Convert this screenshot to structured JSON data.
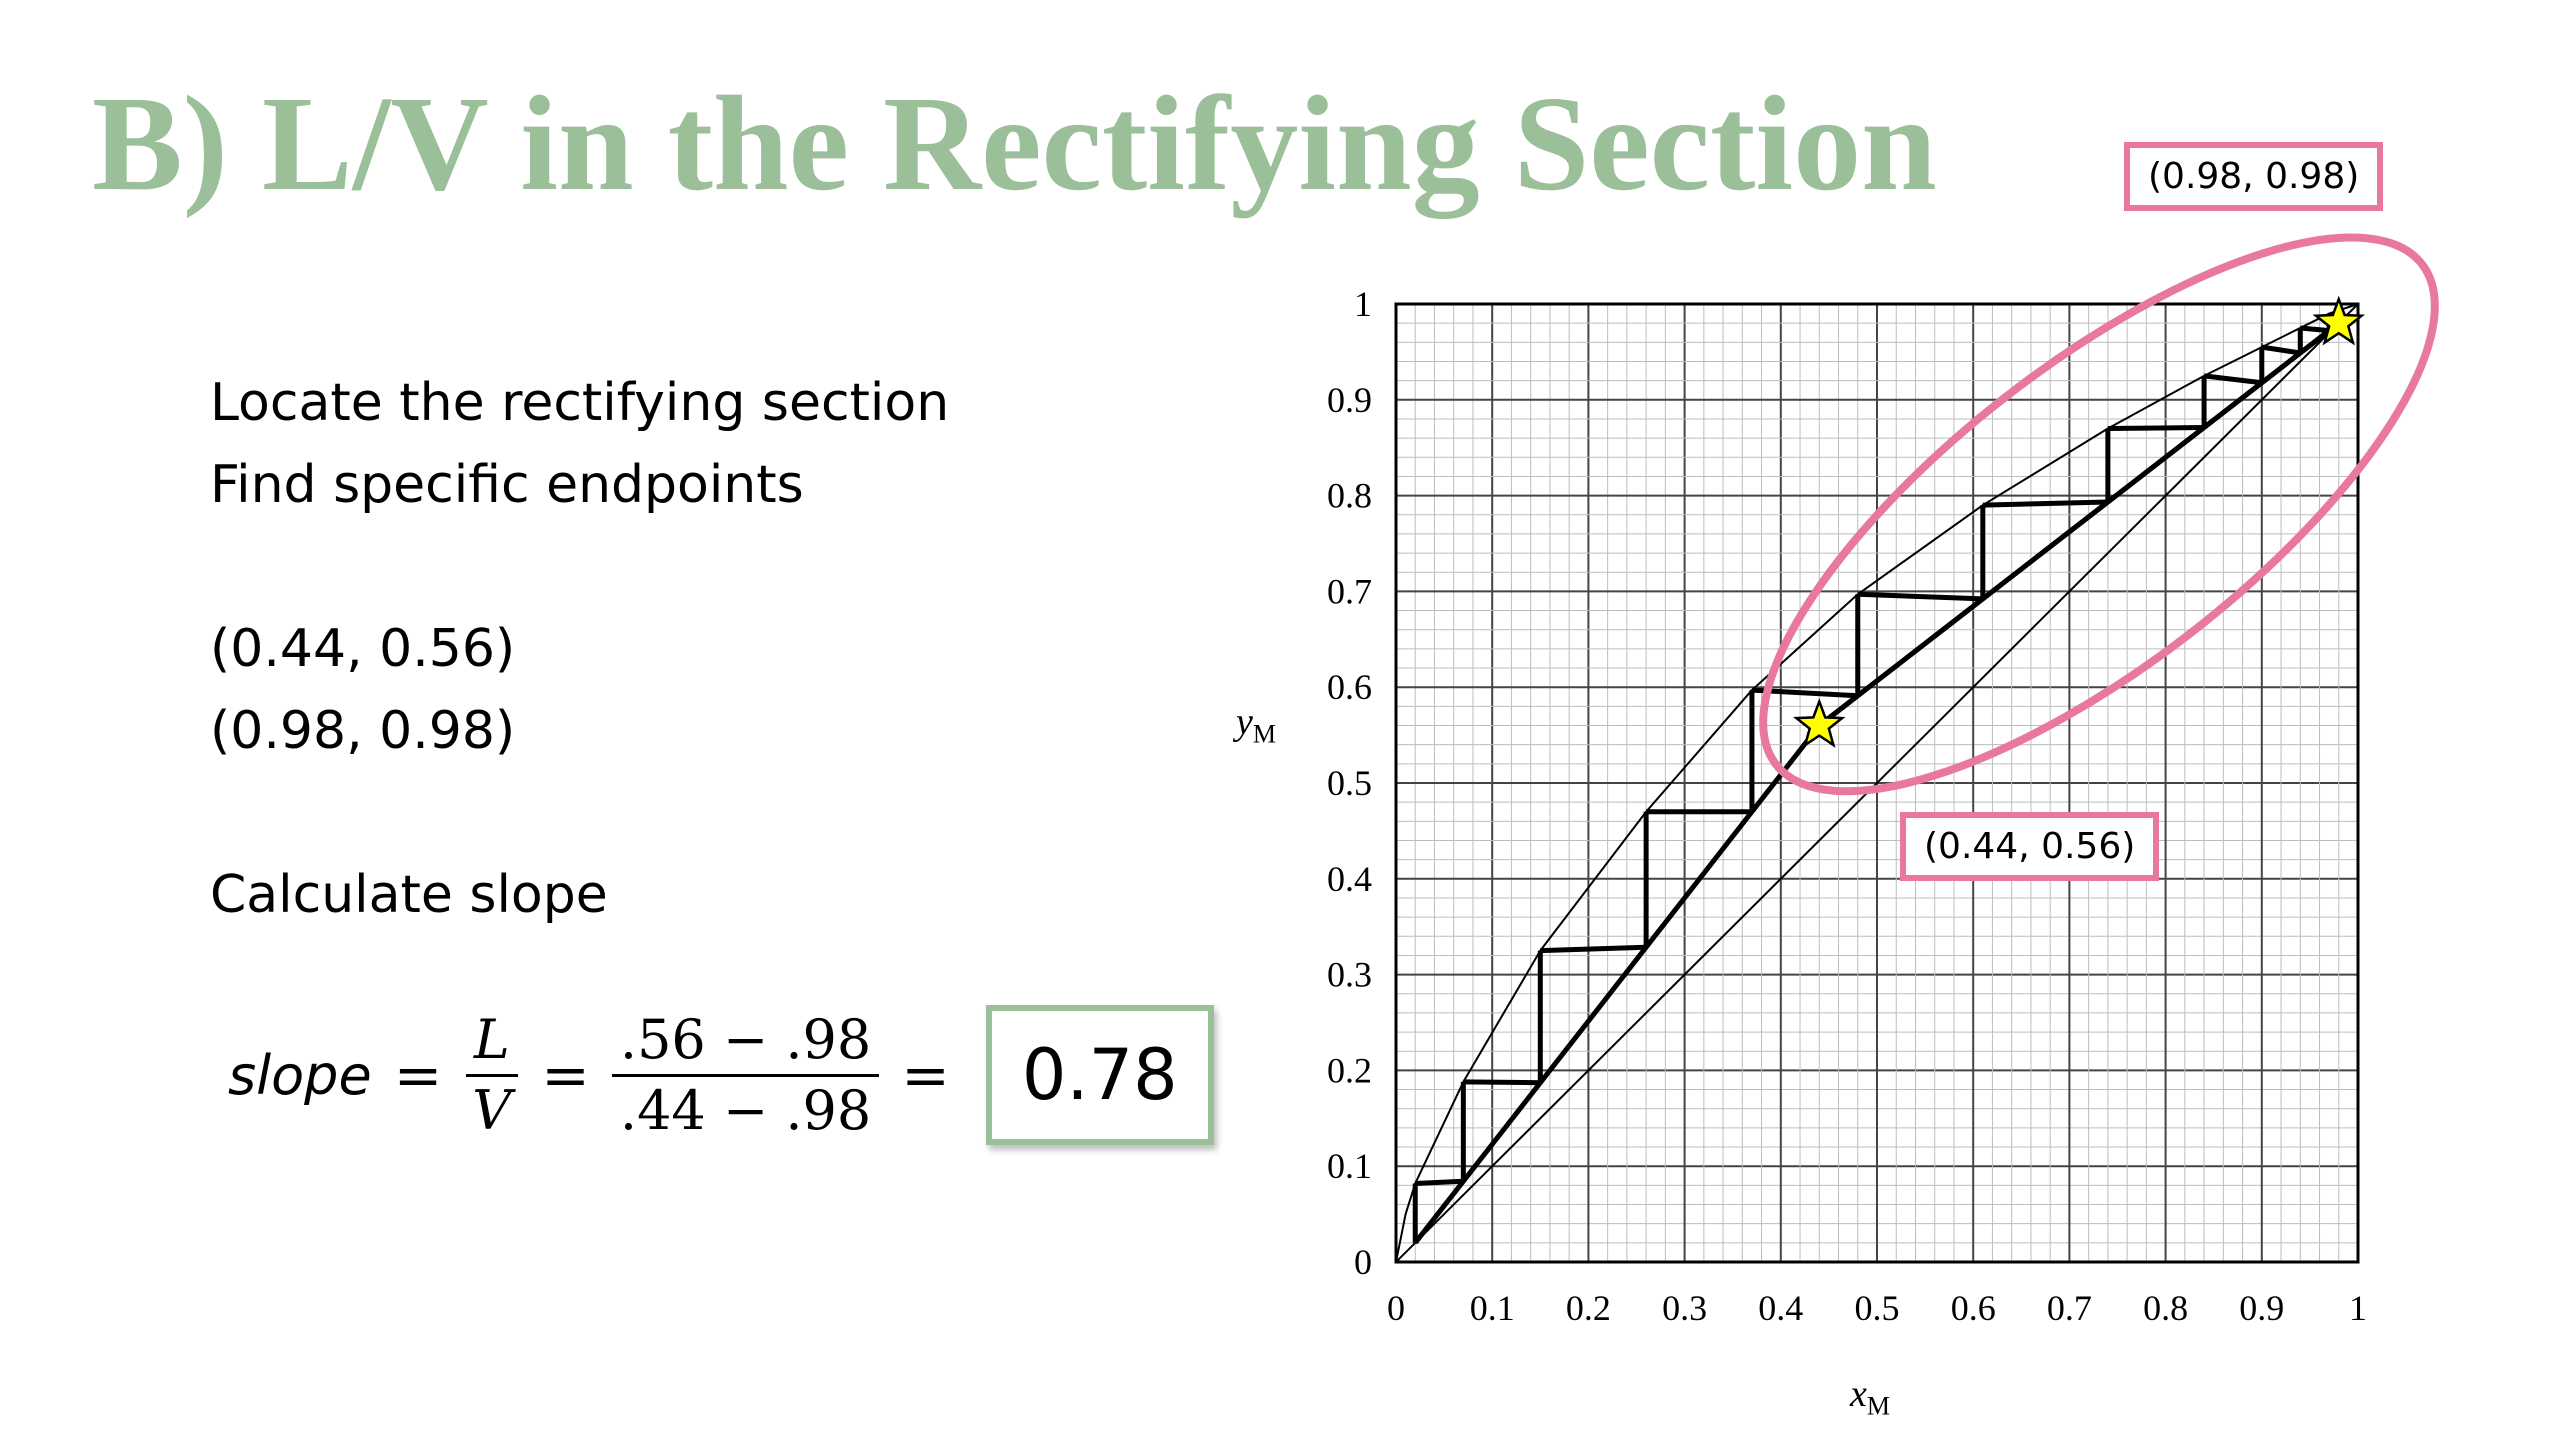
{
  "title": "B) L/V in the Rectifying Section",
  "bullets": {
    "line1": "Locate the rectifying section",
    "line2": "Find specific endpoints",
    "point_a": "(0.44, 0.56)",
    "point_b": "(0.98, 0.98)",
    "calc": "Calculate slope"
  },
  "equation": {
    "slope_word": "slope",
    "eq": "=",
    "L": "L",
    "V": "V",
    "numerator": ".56 − .98",
    "denominator": ".44 − .98",
    "result": "0.78"
  },
  "callouts": {
    "top": "(0.98, 0.98)",
    "mid": "(0.44, 0.56)"
  },
  "chart_data": {
    "type": "line",
    "xlabel_var": "x",
    "xlabel_sub": "M",
    "ylabel_var": "y",
    "ylabel_sub": "M",
    "xlim": [
      0,
      1
    ],
    "ylim": [
      0,
      1
    ],
    "x_ticks": [
      "0",
      "0.1",
      "0.2",
      "0.3",
      "0.4",
      "0.5",
      "0.6",
      "0.7",
      "0.8",
      "0.9",
      "1"
    ],
    "y_ticks": [
      "0",
      "0.1",
      "0.2",
      "0.3",
      "0.4",
      "0.5",
      "0.6",
      "0.7",
      "0.8",
      "0.9",
      "1"
    ],
    "grid": true,
    "series": [
      {
        "x": [
          0,
          1
        ],
        "y": [
          0,
          1
        ]
      },
      {
        "x": [
          0,
          0.01,
          0.02,
          0.07,
          0.15,
          0.26,
          0.37,
          0.48,
          0.61,
          0.74,
          0.84,
          0.9,
          0.94,
          0.97,
          1
        ],
        "y": [
          0,
          0.05,
          0.082,
          0.188,
          0.325,
          0.47,
          0.597,
          0.697,
          0.79,
          0.87,
          0.925,
          0.955,
          0.975,
          0.99,
          1
        ]
      },
      {
        "x": [
          0.02,
          0.44,
          0.98
        ],
        "y": [
          0.02,
          0.56,
          0.98
        ]
      },
      {
        "x": [
          0.44,
          0.98
        ],
        "y": [
          0.56,
          0.98
        ]
      }
    ],
    "steps_x": [
      0.97,
      0.94,
      0.9,
      0.84,
      0.74,
      0.61,
      0.48,
      0.37,
      0.26,
      0.15,
      0.07,
      0.02
    ],
    "steps_y": [
      0.99,
      0.975,
      0.955,
      0.925,
      0.87,
      0.79,
      0.697,
      0.597,
      0.47,
      0.325,
      0.188,
      0.082
    ],
    "marked_points": [
      {
        "x": 0.44,
        "y": 0.56
      },
      {
        "x": 0.98,
        "y": 0.98
      }
    ],
    "star_color": "#ffff00",
    "highlight_color": "#e8799d"
  }
}
